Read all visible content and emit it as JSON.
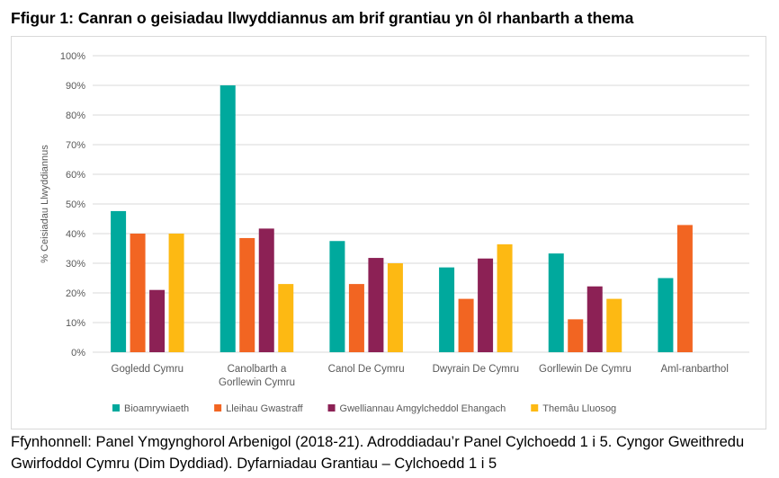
{
  "title": "Ffigur 1: Canran o geisiadau llwyddiannus am brif grantiau yn ôl rhanbarth a thema",
  "source": "Ffynhonnell: Panel Ymgynghorol Arbenigol (2018-21). Adroddiadau’r Panel Cylchoedd 1 i 5. Cyngor Gweithredu Gwirfoddol Cymru (Dim Dyddiad). Dyfarniadau Grantiau – Cylchoedd 1 i 5",
  "chart_data": {
    "type": "bar",
    "title": "",
    "xlabel": "",
    "ylabel": "% Ceisiadau Llwyddiannus",
    "ylim": [
      0,
      100
    ],
    "yticks": [
      "0%",
      "10%",
      "20%",
      "30%",
      "40%",
      "50%",
      "60%",
      "70%",
      "80%",
      "90%",
      "100%"
    ],
    "grid": true,
    "legend": "bottom",
    "categories": [
      [
        "Gogledd Cymru"
      ],
      [
        "Canolbarth a",
        "Gorllewin Cymru"
      ],
      [
        "Canol De Cymru"
      ],
      [
        "Dwyrain De Cymru"
      ],
      [
        "Gorllewin De Cymru"
      ],
      [
        "Aml-ranbarthol"
      ]
    ],
    "series": [
      {
        "name": "Bioamrywiaeth",
        "color": "#00A99D",
        "values": [
          47.6,
          90,
          37.5,
          28.6,
          33.3,
          25
        ]
      },
      {
        "name": "Lleihau Gwastraff",
        "color": "#F26522",
        "values": [
          40,
          38.5,
          23,
          18,
          11.1,
          42.9
        ]
      },
      {
        "name": "Gwelliannau Amgylcheddol Ehangach",
        "color": "#8C2155",
        "values": [
          21,
          41.7,
          31.8,
          31.6,
          22.2,
          null
        ]
      },
      {
        "name": "Themâu Lluosog",
        "color": "#FDB913",
        "values": [
          40,
          23,
          30,
          36.4,
          18,
          null
        ]
      }
    ]
  }
}
